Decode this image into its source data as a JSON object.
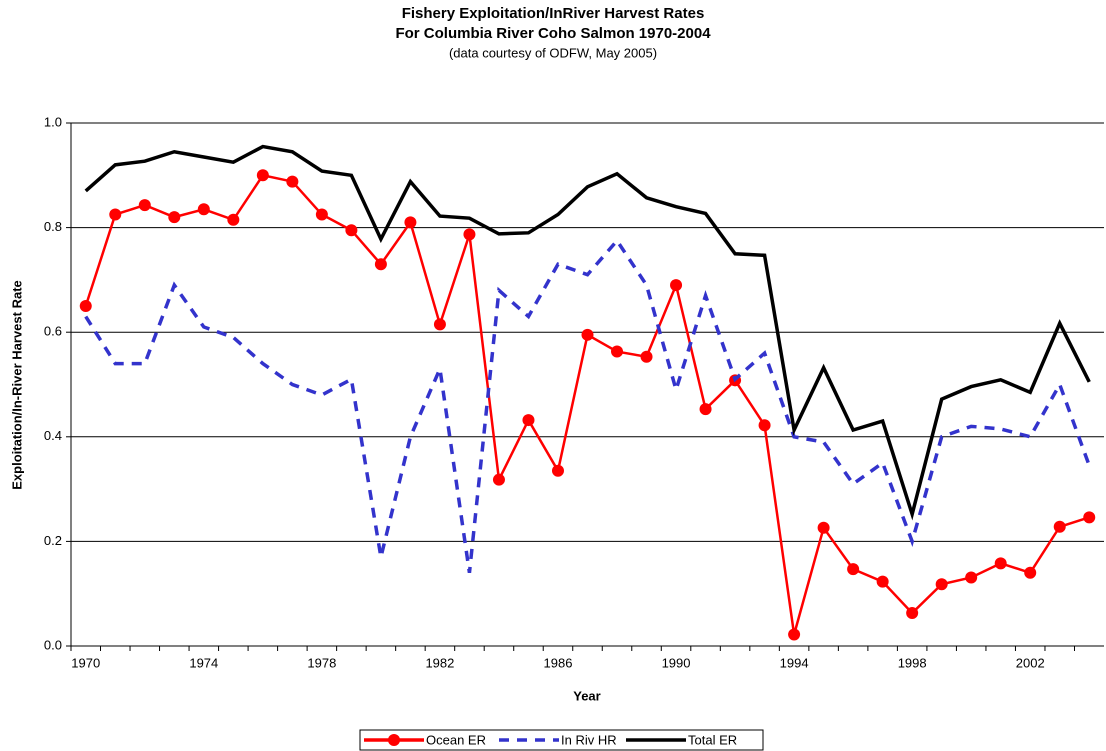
{
  "chart_data": {
    "type": "line",
    "title": "Fishery Exploitation/InRiver Harvest Rates",
    "subtitle": "For Columbia River Coho Salmon 1970-2004",
    "note": "(data courtesy of ODFW, May 2005)",
    "x_label": "Year",
    "y_label": "Exploitation/In-River Harvest Rate",
    "x": [
      1970,
      1971,
      1972,
      1973,
      1974,
      1975,
      1976,
      1977,
      1978,
      1979,
      1980,
      1981,
      1982,
      1983,
      1984,
      1985,
      1986,
      1987,
      1988,
      1989,
      1990,
      1991,
      1992,
      1993,
      1994,
      1995,
      1996,
      1997,
      1998,
      1999,
      2000,
      2001,
      2002,
      2003,
      2004
    ],
    "xlim": [
      1969.5,
      2004.5
    ],
    "xticks": [
      1970,
      1974,
      1978,
      1982,
      1986,
      1990,
      1994,
      1998,
      2002
    ],
    "ylim": [
      0,
      1
    ],
    "yticks": [
      {
        "value": 0,
        "label": "0.0"
      },
      0.2,
      0.4,
      0.6,
      0.8,
      {
        "value": 1,
        "label": "1.0"
      }
    ],
    "grid": true,
    "legend": "bottom",
    "series": [
      {
        "name": "Ocean ER",
        "color": "#ff0000",
        "style": "solid-marker",
        "values": [
          0.65,
          0.825,
          0.843,
          0.82,
          0.835,
          0.815,
          0.9,
          0.888,
          0.825,
          0.795,
          0.73,
          0.81,
          0.615,
          0.787,
          0.318,
          0.432,
          0.335,
          0.595,
          0.563,
          0.553,
          0.69,
          0.453,
          0.508,
          0.422,
          0.022,
          0.226,
          0.147,
          0.123,
          0.063,
          0.118,
          0.131,
          0.158,
          0.14,
          0.228,
          0.246
        ]
      },
      {
        "name": "In Riv HR",
        "color": "#3333cc",
        "style": "dashed",
        "values": [
          0.63,
          0.54,
          0.54,
          0.69,
          0.61,
          0.59,
          0.54,
          0.5,
          0.48,
          0.51,
          0.17,
          0.4,
          0.53,
          0.14,
          0.68,
          0.63,
          0.73,
          0.71,
          0.775,
          0.69,
          0.49,
          0.67,
          0.51,
          0.56,
          0.4,
          0.39,
          0.31,
          0.35,
          0.2,
          0.4,
          0.42,
          0.415,
          0.4,
          0.5,
          0.345
        ]
      },
      {
        "name": "Total ER",
        "color": "#000000",
        "style": "solid",
        "values": [
          0.87,
          0.92,
          0.927,
          0.945,
          0.935,
          0.925,
          0.955,
          0.945,
          0.908,
          0.9,
          0.778,
          0.888,
          0.822,
          0.818,
          0.788,
          0.79,
          0.825,
          0.878,
          0.903,
          0.857,
          0.84,
          0.827,
          0.75,
          0.747,
          0.413,
          0.532,
          0.413,
          0.43,
          0.252,
          0.472,
          0.496,
          0.509,
          0.485,
          0.617,
          0.505
        ]
      }
    ]
  }
}
